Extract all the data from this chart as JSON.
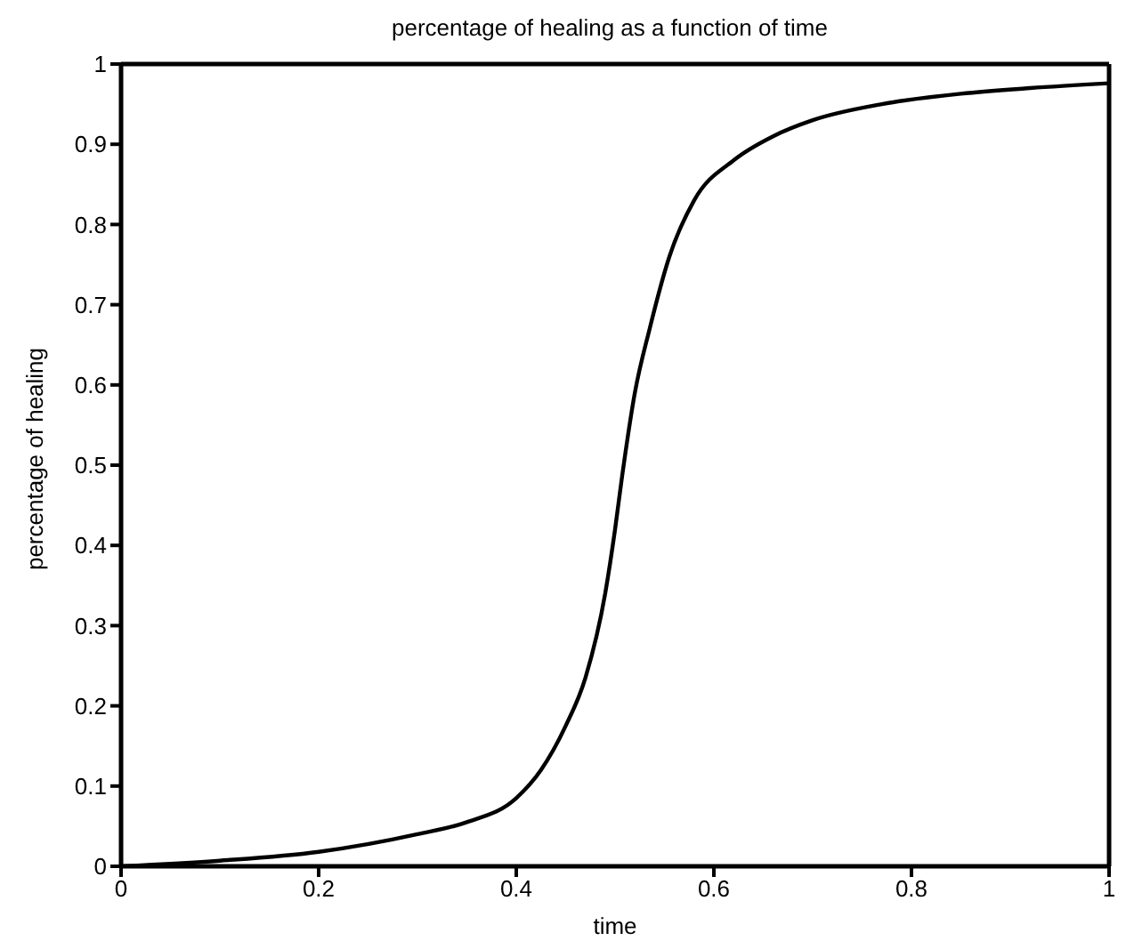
{
  "chart_data": {
    "type": "line",
    "title": "percentage of healing as a function of time",
    "xlabel": "time",
    "ylabel": "percentage of healing",
    "x": [
      0,
      0.1,
      0.2,
      0.3,
      0.35,
      0.4,
      0.425,
      0.45,
      0.47,
      0.49,
      0.5,
      0.507,
      0.52,
      0.535,
      0.555,
      0.58,
      0.62,
      0.66,
      0.7,
      0.77,
      0.85,
      0.92,
      1
    ],
    "series": [
      {
        "color": "#000000",
        "values": [
          0,
          0.007,
          0.018,
          0.04,
          0.055,
          0.085,
          0.12,
          0.175,
          0.235,
          0.34,
          0.42,
          0.485,
          0.59,
          0.67,
          0.76,
          0.83,
          0.88,
          0.91,
          0.93,
          0.95,
          0.963,
          0.97,
          0.976
        ]
      }
    ],
    "xlim": [
      0,
      1
    ],
    "xticks": [
      0,
      0.2,
      0.4,
      0.6,
      0.8,
      1
    ],
    "ylim": [
      0,
      1
    ],
    "yticks": [
      0,
      0.1,
      0.2,
      0.3,
      0.4,
      0.5,
      0.6,
      0.7,
      0.8,
      0.9,
      1
    ],
    "grid": false,
    "legend": false,
    "marker": "none",
    "line_style": "solid"
  }
}
